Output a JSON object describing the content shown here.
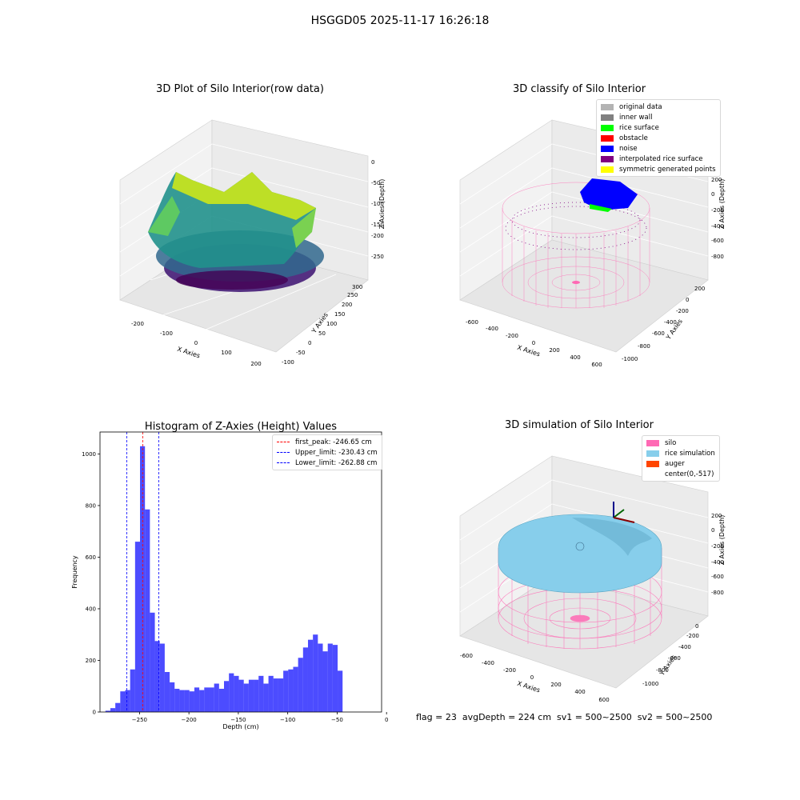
{
  "suptitle": "HSGGD05 2025-11-17 16:26:18",
  "panels": {
    "raw": {
      "title": "3D Plot of Silo Interior(row data)",
      "xlabel": "X Axies",
      "ylabel": "Y Axies",
      "zlabel": "Z Axies (Depth)",
      "xticks": [
        "-200",
        "-100",
        "0",
        "100",
        "200"
      ],
      "yticks": [
        "-100",
        "-50",
        "0",
        "50",
        "100",
        "150",
        "200",
        "250",
        "300"
      ],
      "zticks": [
        "0",
        "-50",
        "-100",
        "-150",
        "-200",
        "-250"
      ]
    },
    "classify": {
      "title": "3D classify of Silo Interior",
      "xlabel": "X Axies",
      "ylabel": "Y Axies",
      "zlabel": "Z Axies (Depth)",
      "xticks": [
        "-600",
        "-400",
        "-200",
        "0",
        "200",
        "400",
        "600"
      ],
      "yticks": [
        "-1000",
        "-800",
        "-600",
        "-400",
        "-200",
        "0",
        "200"
      ],
      "zticks": [
        "200",
        "0",
        "-200",
        "-400",
        "-600",
        "-800"
      ],
      "legend": [
        {
          "label": "original data",
          "color": "#b3b3b3"
        },
        {
          "label": "inner wall",
          "color": "#808080"
        },
        {
          "label": "rice surface",
          "color": "#00ff00"
        },
        {
          "label": "obstacle",
          "color": "#ff0000"
        },
        {
          "label": "noise",
          "color": "#0000ff"
        },
        {
          "label": "interpolated rice surface",
          "color": "#800080"
        },
        {
          "label": "symmetric generated points",
          "color": "#ffff00"
        }
      ]
    },
    "simulation": {
      "title": "3D simulation of Silo Interior",
      "xlabel": "X Axies",
      "ylabel": "Y Axies",
      "zlabel": "Z Axies (Depth)",
      "xticks": [
        "-600",
        "-400",
        "-200",
        "0",
        "200",
        "400",
        "600"
      ],
      "yticks": [
        "-1000",
        "-800",
        "-600",
        "-400",
        "-200",
        "0"
      ],
      "zticks": [
        "200",
        "0",
        "-200",
        "-400",
        "-600",
        "-800"
      ],
      "legend": [
        {
          "label": "silo",
          "color": "#ff69b4"
        },
        {
          "label": "rice simulation",
          "color": "#87ceeb"
        },
        {
          "label": "auger",
          "color": "#ff4500"
        },
        {
          "label": "center(0,-517)",
          "color": "#ffffff"
        }
      ]
    }
  },
  "footer": "flag = 23  avgDepth = 224 cm  sv1 = 500~2500  sv2 = 500~2500",
  "chart_data": [
    {
      "type": "bar",
      "title": "Histogram of Z-Axies (Height) Values",
      "xlabel": "Depth (cm)",
      "ylabel": "Frequency",
      "xlim": [
        -290,
        -5
      ],
      "ylim": [
        0,
        1085
      ],
      "bar_width": 5,
      "color": "#0000ff",
      "xticks": [
        -250,
        -200,
        -150,
        -100,
        -50,
        0
      ],
      "yticks": [
        0,
        200,
        400,
        600,
        800,
        1000
      ],
      "x": [
        -282,
        -277,
        -272,
        -267,
        -262,
        -257,
        -252,
        -247,
        -242,
        -237,
        -232,
        -227,
        -222,
        -217,
        -212,
        -207,
        -202,
        -197,
        -192,
        -187,
        -182,
        -177,
        -172,
        -167,
        -162,
        -157,
        -152,
        -147,
        -142,
        -137,
        -132,
        -127,
        -122,
        -117,
        -112,
        -107,
        -102,
        -97,
        -92,
        -87,
        -82,
        -77,
        -72,
        -67,
        -62,
        -57,
        -52,
        -47,
        -42,
        -37,
        -32,
        -27,
        -22,
        -17,
        -12
      ],
      "values": [
        5,
        15,
        35,
        80,
        85,
        165,
        660,
        1030,
        785,
        385,
        275,
        265,
        155,
        115,
        90,
        85,
        85,
        80,
        95,
        85,
        95,
        95,
        110,
        90,
        120,
        150,
        140,
        125,
        110,
        125,
        125,
        140,
        110,
        140,
        130,
        130,
        160,
        165,
        175,
        210,
        250,
        280,
        300,
        265,
        235,
        265,
        260,
        160,
        0,
        0,
        0,
        0,
        0,
        0,
        0
      ],
      "vlines": [
        {
          "x": -246.65,
          "label": "first_peak: -246.65 cm",
          "color": "#ff0000"
        },
        {
          "x": -230.43,
          "label": "Upper_limit: -230.43 cm",
          "color": "#0000ff"
        },
        {
          "x": -262.88,
          "label": "Lower_limit: -262.88 cm",
          "color": "#0000ff"
        }
      ]
    }
  ]
}
